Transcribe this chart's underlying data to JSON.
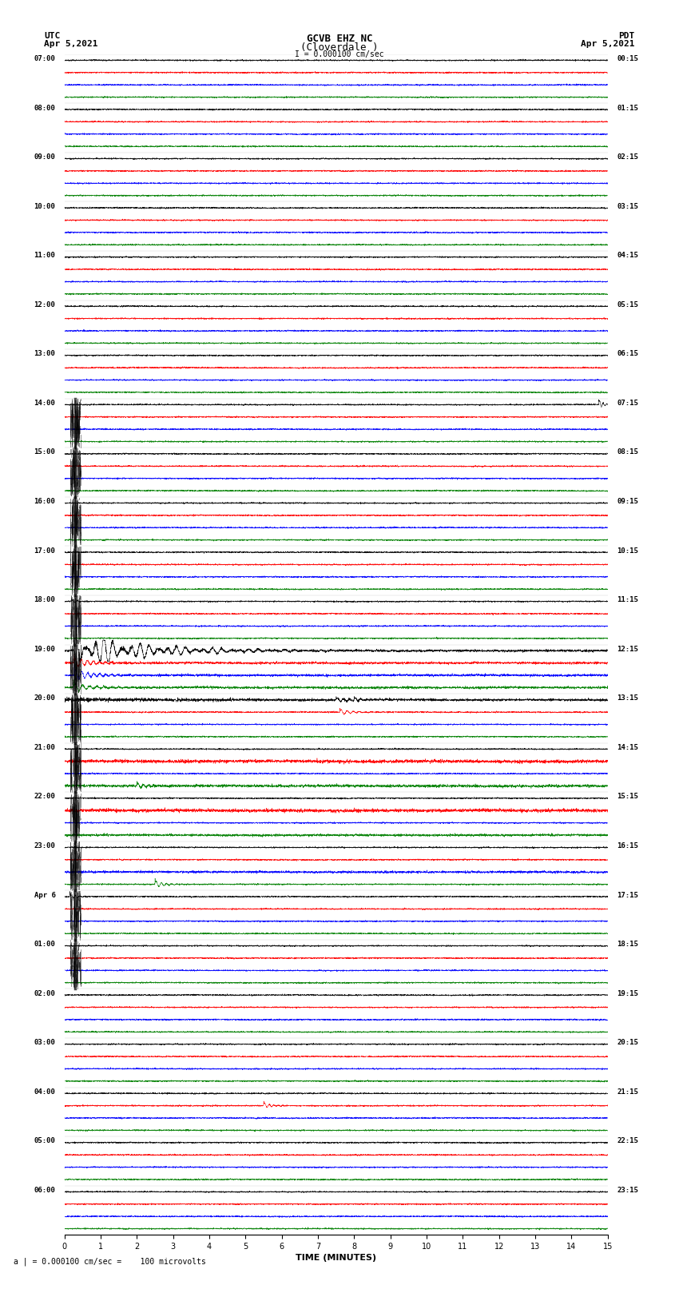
{
  "title_line1": "GCVB EHZ NC",
  "title_line2": "(Cloverdale )",
  "scale_text": "I = 0.000100 cm/sec",
  "left_label_line1": "UTC",
  "left_label_line2": "Apr 5,2021",
  "right_label_line1": "PDT",
  "right_label_line2": "Apr 5,2021",
  "bottom_label": "a | = 0.000100 cm/sec =    100 microvolts",
  "xlabel": "TIME (MINUTES)",
  "utc_labels": [
    "07:00",
    "08:00",
    "09:00",
    "10:00",
    "11:00",
    "12:00",
    "13:00",
    "14:00",
    "15:00",
    "16:00",
    "17:00",
    "18:00",
    "19:00",
    "20:00",
    "21:00",
    "22:00",
    "23:00",
    "Apr 6",
    "01:00",
    "02:00",
    "03:00",
    "04:00",
    "05:00",
    "06:00"
  ],
  "pdt_labels": [
    "00:15",
    "01:15",
    "02:15",
    "03:15",
    "04:15",
    "05:15",
    "06:15",
    "07:15",
    "08:15",
    "09:15",
    "10:15",
    "11:15",
    "12:15",
    "13:15",
    "14:15",
    "15:15",
    "16:15",
    "17:15",
    "18:15",
    "19:15",
    "20:15",
    "21:15",
    "22:15",
    "23:15"
  ],
  "n_rows": 24,
  "traces_per_row": 4,
  "colors_cycle": [
    "black",
    "red",
    "blue",
    "green"
  ],
  "bg_color": "#ffffff",
  "noise_amplitude": 0.06,
  "xmin": 0,
  "xmax": 15,
  "n_points": 4500
}
